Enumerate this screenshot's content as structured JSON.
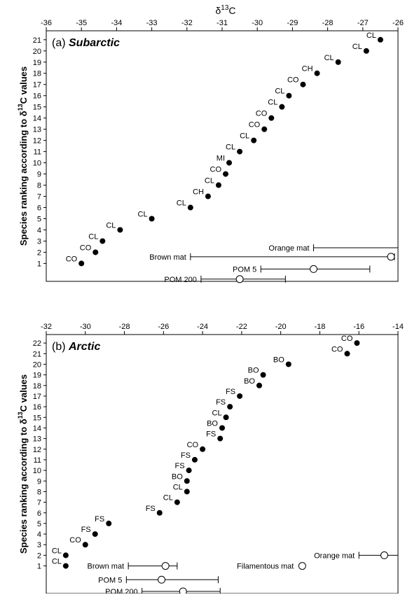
{
  "figure": {
    "top_axis_label": "δ13C",
    "ylabel": "Species ranking according to δ13C values"
  },
  "chart_data": [
    {
      "type": "scatter",
      "panel_label": "(a)",
      "panel_title": "Subarctic",
      "xlim": [
        -36,
        -26
      ],
      "x_ticks": [
        -36,
        -35,
        -34,
        -33,
        -32,
        -31,
        -30,
        -29,
        -28,
        -27,
        -26
      ],
      "y_ticks": [
        1,
        2,
        3,
        4,
        5,
        6,
        7,
        8,
        9,
        10,
        11,
        12,
        13,
        14,
        15,
        16,
        17,
        18,
        19,
        20,
        21
      ],
      "ylim": [
        -0.6,
        21.8
      ],
      "points": [
        {
          "rank": 1,
          "x": -35.0,
          "label": "CO"
        },
        {
          "rank": 2,
          "x": -34.6,
          "label": "CO"
        },
        {
          "rank": 3,
          "x": -34.4,
          "label": "CL"
        },
        {
          "rank": 4,
          "x": -33.9,
          "label": "CL"
        },
        {
          "rank": 5,
          "x": -33.0,
          "label": "CL"
        },
        {
          "rank": 6,
          "x": -31.9,
          "label": "CL"
        },
        {
          "rank": 7,
          "x": -31.4,
          "label": "CH"
        },
        {
          "rank": 8,
          "x": -31.1,
          "label": "CL"
        },
        {
          "rank": 9,
          "x": -30.9,
          "label": "CO"
        },
        {
          "rank": 10,
          "x": -30.8,
          "label": "MI"
        },
        {
          "rank": 11,
          "x": -30.5,
          "label": "CL"
        },
        {
          "rank": 12,
          "x": -30.1,
          "label": "CL"
        },
        {
          "rank": 13,
          "x": -29.8,
          "label": "CO"
        },
        {
          "rank": 14,
          "x": -29.6,
          "label": "CO"
        },
        {
          "rank": 15,
          "x": -29.3,
          "label": "CL"
        },
        {
          "rank": 16,
          "x": -29.1,
          "label": "CL"
        },
        {
          "rank": 17,
          "x": -28.7,
          "label": "CO"
        },
        {
          "rank": 18,
          "x": -28.3,
          "label": "CH"
        },
        {
          "rank": 19,
          "x": -27.7,
          "label": "CL"
        },
        {
          "rank": 20,
          "x": -26.9,
          "label": "CL"
        },
        {
          "rank": 21,
          "x": -26.5,
          "label": "CL"
        }
      ],
      "sources": [
        {
          "label": "Orange mat",
          "y": 2.4,
          "lo": -28.4,
          "hi": -26.0,
          "mean": null
        },
        {
          "label": "Brown mat",
          "y": 1.6,
          "lo": -31.9,
          "hi": -26.1,
          "mean": -26.2
        },
        {
          "label": "POM 5",
          "y": 0.5,
          "lo": -29.9,
          "hi": -26.8,
          "mean": -28.4
        },
        {
          "label": "POM 200",
          "y": -0.4,
          "lo": -31.6,
          "hi": -29.2,
          "mean": -30.5
        }
      ]
    },
    {
      "type": "scatter",
      "panel_label": "(b)",
      "panel_title": "Arctic",
      "xlim": [
        -32,
        -14
      ],
      "x_ticks": [
        -32,
        -30,
        -28,
        -26,
        -24,
        -22,
        -20,
        -18,
        -16,
        -14
      ],
      "y_ticks": [
        1,
        2,
        3,
        4,
        5,
        6,
        7,
        8,
        9,
        10,
        11,
        12,
        13,
        14,
        15,
        16,
        17,
        18,
        19,
        20,
        21,
        22
      ],
      "ylim": [
        -1.6,
        22.8
      ],
      "points": [
        {
          "rank": 1,
          "x": -31.0,
          "label": "CL"
        },
        {
          "rank": 2,
          "x": -31.0,
          "label": "CL"
        },
        {
          "rank": 3,
          "x": -30.0,
          "label": "CO"
        },
        {
          "rank": 4,
          "x": -29.5,
          "label": "FS"
        },
        {
          "rank": 5,
          "x": -28.8,
          "label": "FS"
        },
        {
          "rank": 6,
          "x": -26.2,
          "label": "FS"
        },
        {
          "rank": 7,
          "x": -25.3,
          "label": "CL"
        },
        {
          "rank": 8,
          "x": -24.8,
          "label": "CL"
        },
        {
          "rank": 9,
          "x": -24.8,
          "label": "BO"
        },
        {
          "rank": 10,
          "x": -24.7,
          "label": "FS"
        },
        {
          "rank": 11,
          "x": -24.4,
          "label": "FS"
        },
        {
          "rank": 12,
          "x": -24.0,
          "label": "CO"
        },
        {
          "rank": 13,
          "x": -23.1,
          "label": "FS"
        },
        {
          "rank": 14,
          "x": -23.0,
          "label": "BO"
        },
        {
          "rank": 15,
          "x": -22.8,
          "label": "CL"
        },
        {
          "rank": 16,
          "x": -22.6,
          "label": "FS"
        },
        {
          "rank": 17,
          "x": -22.1,
          "label": "FS"
        },
        {
          "rank": 18,
          "x": -21.1,
          "label": "BO"
        },
        {
          "rank": 19,
          "x": -20.9,
          "label": "BO"
        },
        {
          "rank": 20,
          "x": -19.6,
          "label": "BO"
        },
        {
          "rank": 21,
          "x": -16.6,
          "label": "CO"
        },
        {
          "rank": 22,
          "x": -16.1,
          "label": "CO"
        }
      ],
      "sources": [
        {
          "label": "Orange mat",
          "y": 2.0,
          "lo": -16.0,
          "hi": -14.0,
          "mean": -14.7
        },
        {
          "label": "Filamentous mat",
          "y": 1.0,
          "lo": null,
          "hi": null,
          "mean": -18.9
        },
        {
          "label": "Brown mat",
          "y": 1.0,
          "lo": -27.8,
          "hi": -25.3,
          "mean": -25.9
        },
        {
          "label": "POM 5",
          "y": -0.3,
          "lo": -27.9,
          "hi": -23.2,
          "mean": -26.1
        },
        {
          "label": "POM 200",
          "y": -1.4,
          "lo": -27.1,
          "hi": -23.1,
          "mean": -25.0
        }
      ]
    }
  ]
}
